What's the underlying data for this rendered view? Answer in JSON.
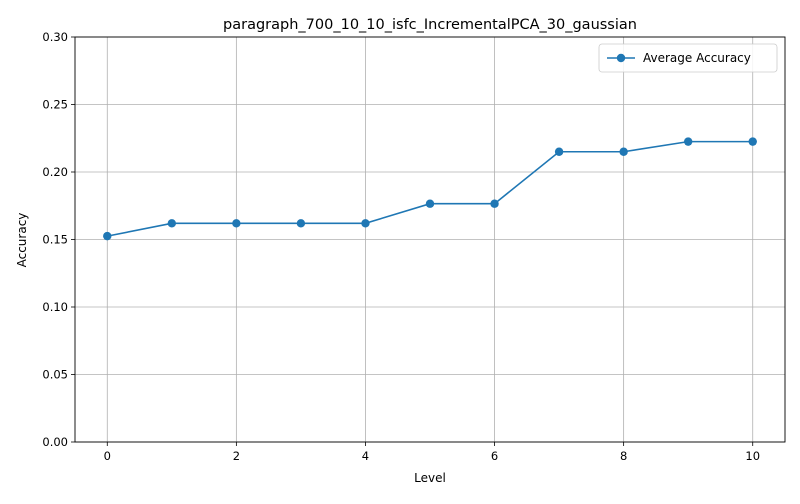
{
  "chart_data": {
    "type": "line",
    "title": "paragraph_700_10_10_isfc_IncrementalPCA_30_gaussian",
    "xlabel": "Level",
    "ylabel": "Accuracy",
    "xlim": [
      -0.5,
      10.5
    ],
    "ylim": [
      0.0,
      0.3
    ],
    "xticks": [
      0,
      2,
      4,
      6,
      8,
      10
    ],
    "xtick_labels": [
      "0",
      "2",
      "4",
      "6",
      "8",
      "10"
    ],
    "yticks": [
      0.0,
      0.05,
      0.1,
      0.15,
      0.2,
      0.25,
      0.3
    ],
    "ytick_labels": [
      "0.00",
      "0.05",
      "0.10",
      "0.15",
      "0.20",
      "0.25",
      "0.30"
    ],
    "grid": true,
    "legend_position": "top-right",
    "series": [
      {
        "name": "Average Accuracy",
        "color": "#1f77b4",
        "marker": "circle",
        "x": [
          0,
          1,
          2,
          3,
          4,
          5,
          6,
          7,
          8,
          9,
          10
        ],
        "y": [
          0.1525,
          0.162,
          0.162,
          0.162,
          0.162,
          0.1765,
          0.1765,
          0.215,
          0.215,
          0.2225,
          0.2225
        ]
      }
    ]
  }
}
